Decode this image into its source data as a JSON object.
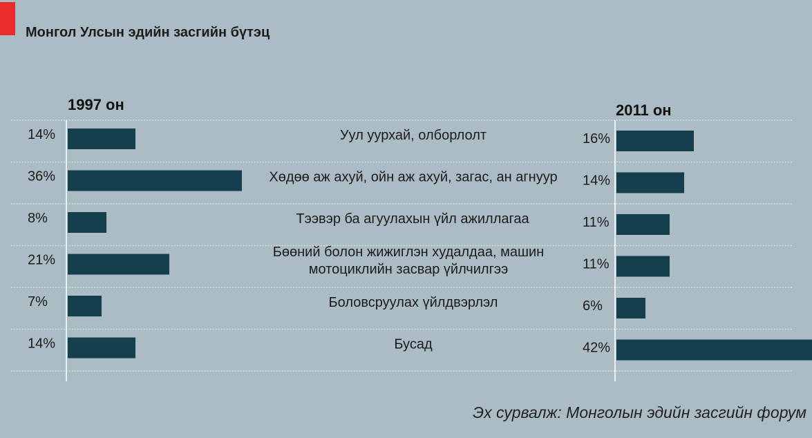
{
  "title": "Монгол Улсын эдийн засгийн бүтэц",
  "source": "Эх сурвалж: Монголын эдийн засгийн форум",
  "colors": {
    "background": "#abbcc5",
    "bar": "#153f4c",
    "accent": "#ec2c2c",
    "gridline": "#eef2f4"
  },
  "chart_data": {
    "type": "bar",
    "categories": [
      [
        "Уул уурхай, олборлолт"
      ],
      [
        "Хөдөө аж ахуй, ойн аж ахуй, загас, ан агнуур"
      ],
      [
        "Тээвэр ба агуулахын үйл ажиллагаа"
      ],
      [
        "Бөөний болон жижиглэн худалдаа, машин",
        "мотоциклийн засвар үйлчилгээ"
      ],
      [
        "Боловсруулах үйлдвэрлэл"
      ],
      [
        "Бусад"
      ]
    ],
    "series": [
      {
        "name": "1997 он",
        "values": [
          14,
          36,
          8,
          21,
          7,
          14
        ],
        "labels": [
          "14%",
          "36%",
          "8%",
          "21%",
          "7%",
          "14%"
        ]
      },
      {
        "name": "2011 он",
        "values": [
          16,
          14,
          11,
          11,
          6,
          42
        ],
        "labels": [
          "16%",
          "14%",
          "11%",
          "11%",
          "6%",
          "42%"
        ]
      }
    ],
    "unit": "%"
  }
}
